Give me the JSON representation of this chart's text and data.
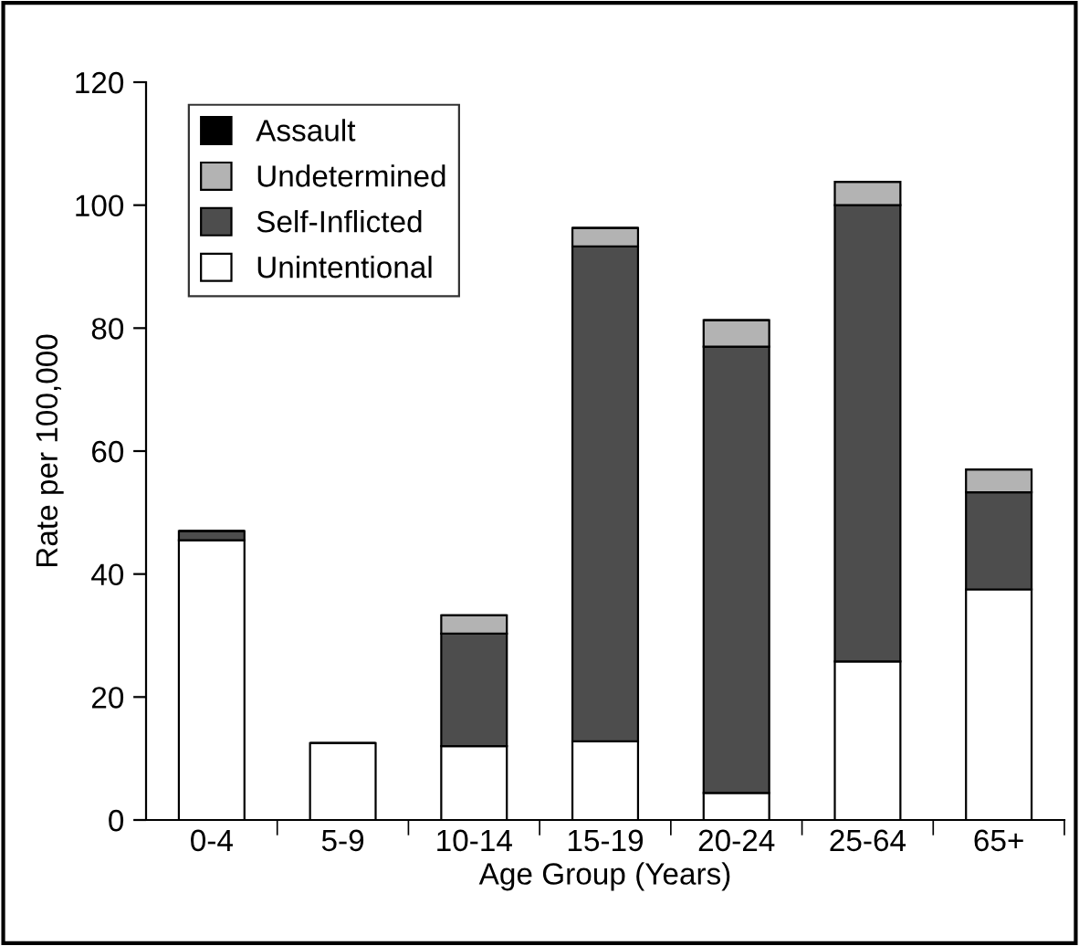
{
  "chart_data": {
    "type": "bar",
    "stacked": true,
    "xlabel": "Age Group (Years)",
    "ylabel": "Rate per 100,000",
    "categories": [
      "0-4",
      "5-9",
      "10-14",
      "15-19",
      "20-24",
      "25-64",
      "65+"
    ],
    "series": [
      {
        "name": "Unintentional",
        "color": "#ffffff",
        "values": [
          45.5,
          12.5,
          12,
          12.8,
          4.4,
          25.8,
          37.5
        ]
      },
      {
        "name": "Self-Inflicted",
        "color": "#4d4d4d",
        "values": [
          1.5,
          0,
          18.3,
          80.5,
          72.6,
          74.2,
          15.8
        ]
      },
      {
        "name": "Undetermined",
        "color": "#b3b3b3",
        "values": [
          0,
          0,
          3,
          3,
          4.3,
          3.8,
          3.7
        ]
      },
      {
        "name": "Assault",
        "color": "#000000",
        "values": [
          0,
          0,
          0,
          0,
          0,
          0,
          0
        ]
      }
    ],
    "ylim": [
      0,
      120
    ],
    "yticks": [
      0,
      20,
      40,
      60,
      80,
      100,
      120
    ],
    "grid": false,
    "legend": "top left"
  }
}
